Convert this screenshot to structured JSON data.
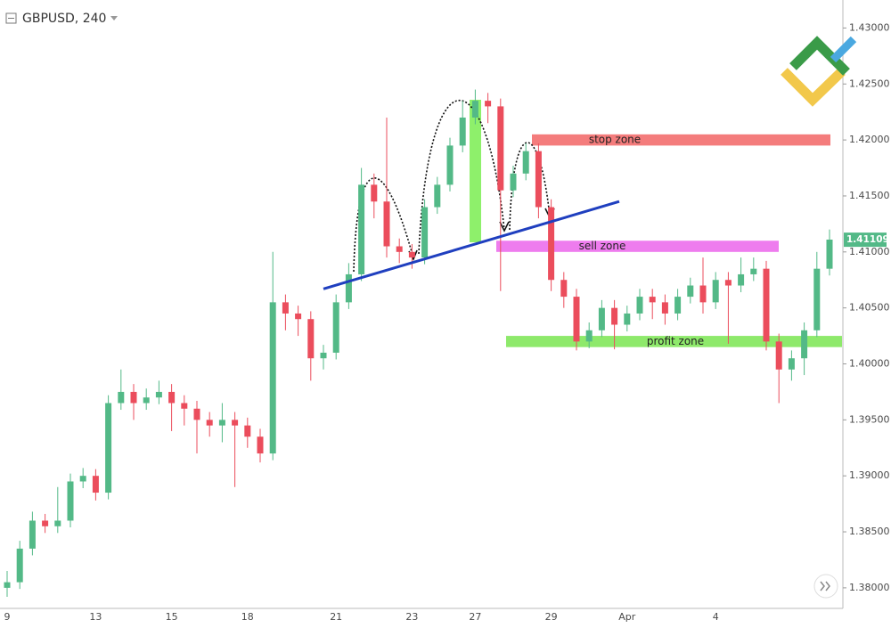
{
  "chart_data": {
    "type": "candlestick",
    "title": "GBPUSD, 240",
    "categories": [
      "9",
      null,
      null,
      null,
      null,
      null,
      null,
      "13",
      null,
      null,
      null,
      null,
      null,
      "15",
      null,
      null,
      null,
      null,
      null,
      "18",
      null,
      null,
      null,
      null,
      null,
      null,
      "21",
      null,
      null,
      null,
      null,
      null,
      "23",
      null,
      null,
      null,
      null,
      "27",
      null,
      null,
      null,
      null,
      null,
      "29",
      null,
      null,
      null,
      null,
      null,
      "Apr",
      null,
      null,
      null,
      null,
      null,
      null,
      "4",
      null,
      null,
      null,
      null,
      null,
      null,
      null,
      null,
      null
    ],
    "open": [
      1.38,
      1.3805,
      1.3835,
      1.386,
      1.3855,
      1.386,
      1.3895,
      1.39,
      1.3885,
      1.3965,
      1.3975,
      1.3965,
      1.397,
      1.3975,
      1.3965,
      1.396,
      1.395,
      1.3945,
      1.395,
      1.3945,
      1.3935,
      1.392,
      1.4055,
      1.4045,
      1.404,
      1.4005,
      1.401,
      1.4055,
      1.408,
      1.416,
      1.4145,
      1.4105,
      1.41,
      1.4095,
      1.414,
      1.416,
      1.4195,
      1.422,
      1.4235,
      1.423,
      1.4155,
      1.417,
      1.419,
      1.414,
      1.4075,
      1.406,
      1.402,
      1.403,
      1.405,
      1.4035,
      1.4045,
      1.406,
      1.4055,
      1.4045,
      1.406,
      1.407,
      1.4055,
      1.4075,
      1.407,
      1.408,
      1.4085,
      1.402,
      1.3995,
      1.4005,
      1.403,
      1.4085
    ],
    "high": [
      1.3815,
      1.3842,
      1.3868,
      1.3866,
      1.389,
      1.3902,
      1.3907,
      1.3906,
      1.3972,
      1.3995,
      1.3982,
      1.3978,
      1.3985,
      1.3982,
      1.3972,
      1.3967,
      1.3957,
      1.3965,
      1.3957,
      1.3952,
      1.3942,
      1.41,
      1.4062,
      1.4052,
      1.4047,
      1.4017,
      1.4062,
      1.409,
      1.4175,
      1.417,
      1.422,
      1.4112,
      1.4107,
      1.4147,
      1.4167,
      1.4202,
      1.4235,
      1.4245,
      1.4242,
      1.4237,
      1.4177,
      1.4197,
      1.4197,
      1.4147,
      1.4082,
      1.4067,
      1.4037,
      1.4057,
      1.4057,
      1.4052,
      1.4067,
      1.4067,
      1.4062,
      1.4067,
      1.4077,
      1.4095,
      1.4082,
      1.4082,
      1.4095,
      1.4095,
      1.4092,
      1.4027,
      1.4012,
      1.4037,
      1.41,
      1.412
    ],
    "low": [
      1.3792,
      1.3799,
      1.3829,
      1.3849,
      1.3849,
      1.3854,
      1.3889,
      1.3878,
      1.3879,
      1.3959,
      1.395,
      1.3959,
      1.3964,
      1.394,
      1.3945,
      1.392,
      1.3935,
      1.393,
      1.389,
      1.3925,
      1.3912,
      1.3914,
      1.403,
      1.4025,
      1.3985,
      1.3995,
      1.4004,
      1.4049,
      1.4074,
      1.413,
      1.4095,
      1.409,
      1.4085,
      1.4089,
      1.4134,
      1.4154,
      1.4189,
      1.4214,
      1.4215,
      1.4065,
      1.4149,
      1.4164,
      1.413,
      1.4065,
      1.405,
      1.4012,
      1.4014,
      1.4024,
      1.4013,
      1.4029,
      1.4039,
      1.404,
      1.4035,
      1.4039,
      1.4054,
      1.4045,
      1.4049,
      1.4018,
      1.4064,
      1.4074,
      1.4012,
      1.3965,
      1.3985,
      1.399,
      1.4024,
      1.4079
    ],
    "close": [
      1.3805,
      1.3835,
      1.386,
      1.3855,
      1.386,
      1.3895,
      1.39,
      1.3885,
      1.3965,
      1.3975,
      1.3965,
      1.397,
      1.3975,
      1.3965,
      1.396,
      1.395,
      1.3945,
      1.395,
      1.3945,
      1.3935,
      1.392,
      1.4055,
      1.4045,
      1.404,
      1.4005,
      1.401,
      1.4055,
      1.408,
      1.416,
      1.4145,
      1.4105,
      1.41,
      1.4095,
      1.414,
      1.416,
      1.4195,
      1.422,
      1.4235,
      1.423,
      1.4155,
      1.417,
      1.419,
      1.414,
      1.4075,
      1.406,
      1.402,
      1.403,
      1.405,
      1.4035,
      1.4045,
      1.406,
      1.4055,
      1.4045,
      1.406,
      1.407,
      1.4055,
      1.4075,
      1.407,
      1.408,
      1.4085,
      1.402,
      1.3995,
      1.4005,
      1.403,
      1.4085,
      1.4111
    ],
    "up_color": "#53b987",
    "down_color": "#eb4d5c",
    "ylim": [
      1.3784,
      1.4325
    ],
    "yticks": [
      {
        "value": 1.38,
        "label": "1.38000"
      },
      {
        "value": 1.385,
        "label": "1.38500"
      },
      {
        "value": 1.39,
        "label": "1.39000"
      },
      {
        "value": 1.395,
        "label": "1.39500"
      },
      {
        "value": 1.4,
        "label": "1.40000"
      },
      {
        "value": 1.405,
        "label": "1.40500"
      },
      {
        "value": 1.41,
        "label": "1.41000"
      },
      {
        "value": 1.415,
        "label": "1.41500"
      },
      {
        "value": 1.42,
        "label": "1.42000"
      },
      {
        "value": 1.425,
        "label": "1.42500"
      },
      {
        "value": 1.43,
        "label": "1.43000"
      }
    ],
    "last_price": {
      "value": 1.41109,
      "label": "1.41109",
      "color": "#53b987"
    },
    "zones": [
      {
        "label": "stop zone",
        "low": 1.4195,
        "high": 1.4205,
        "color": "#f47c7c"
      },
      {
        "label": "sell zone",
        "low": 1.41,
        "high": 1.411,
        "color": "#ee7cee"
      },
      {
        "label": "profit zone",
        "low": 1.4015,
        "high": 1.4025,
        "color": "#8ee96b"
      }
    ],
    "trendline": {
      "start": 1.4067,
      "end": 1.4145,
      "color": "#1f3fbf"
    }
  }
}
